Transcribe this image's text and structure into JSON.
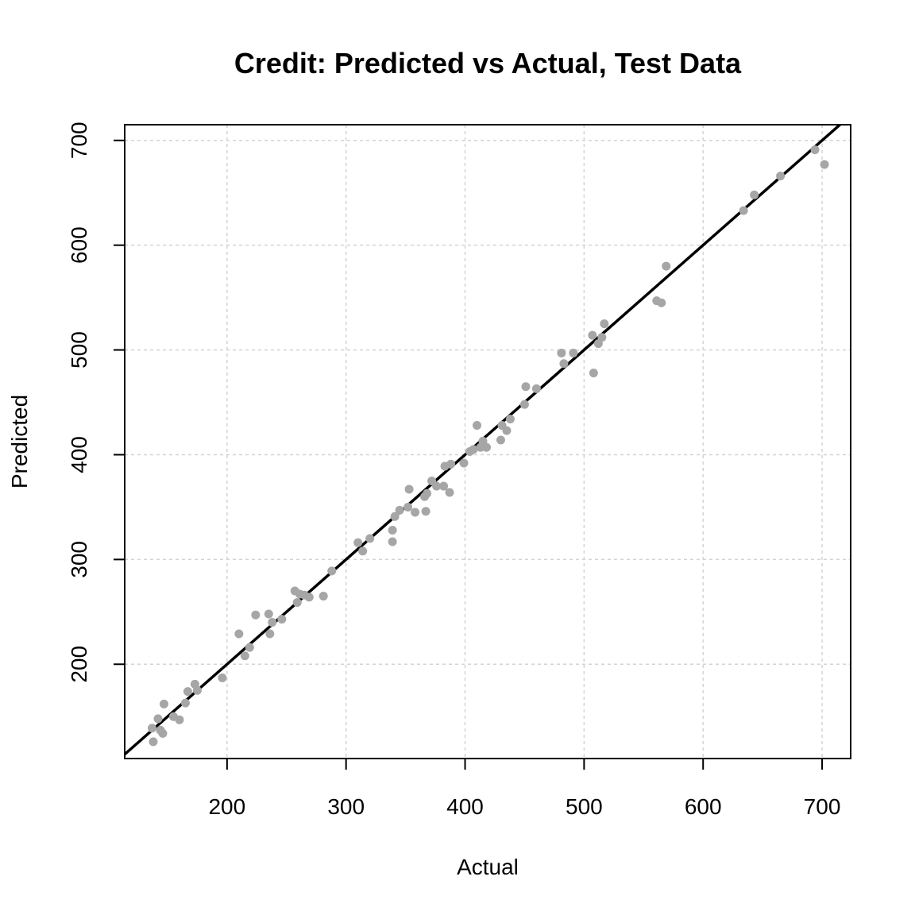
{
  "chart_data": {
    "type": "scatter",
    "title": "Credit: Predicted vs Actual, Test Data",
    "xlabel": "Actual",
    "ylabel": "Predicted",
    "xlim": [
      114,
      724
    ],
    "ylim": [
      110,
      715
    ],
    "xticks": [
      200,
      300,
      400,
      500,
      600,
      700
    ],
    "yticks": [
      200,
      300,
      400,
      500,
      600,
      700
    ],
    "grid": true,
    "point_color": "#a6a6a6",
    "line_color": "#000000",
    "reference_line": {
      "intercept": 0,
      "slope": 1
    },
    "series": [
      {
        "points": [
          [
            137,
            139
          ],
          [
            138,
            126
          ],
          [
            142,
            148
          ],
          [
            144,
            137
          ],
          [
            146,
            134
          ],
          [
            147,
            162
          ],
          [
            155,
            150
          ],
          [
            160,
            147
          ],
          [
            165,
            163
          ],
          [
            167,
            174
          ],
          [
            173,
            181
          ],
          [
            175,
            175
          ],
          [
            196,
            187
          ],
          [
            210,
            229
          ],
          [
            215,
            208
          ],
          [
            219,
            216
          ],
          [
            224,
            247
          ],
          [
            235,
            248
          ],
          [
            236,
            229
          ],
          [
            238,
            240
          ],
          [
            246,
            243
          ],
          [
            257,
            270
          ],
          [
            259,
            259
          ],
          [
            261,
            267
          ],
          [
            265,
            266
          ],
          [
            269,
            264
          ],
          [
            281,
            265
          ],
          [
            288,
            289
          ],
          [
            310,
            316
          ],
          [
            314,
            308
          ],
          [
            320,
            320
          ],
          [
            339,
            328
          ],
          [
            339,
            317
          ],
          [
            341,
            341
          ],
          [
            345,
            347
          ],
          [
            352,
            350
          ],
          [
            353,
            367
          ],
          [
            358,
            345
          ],
          [
            366,
            360
          ],
          [
            367,
            346
          ],
          [
            368,
            363
          ],
          [
            372,
            375
          ],
          [
            376,
            370
          ],
          [
            382,
            370
          ],
          [
            383,
            389
          ],
          [
            387,
            364
          ],
          [
            388,
            391
          ],
          [
            399,
            392
          ],
          [
            404,
            403
          ],
          [
            407,
            405
          ],
          [
            410,
            428
          ],
          [
            413,
            407
          ],
          [
            415,
            413
          ],
          [
            418,
            407
          ],
          [
            430,
            414
          ],
          [
            431,
            428
          ],
          [
            435,
            423
          ],
          [
            438,
            434
          ],
          [
            450,
            448
          ],
          [
            451,
            465
          ],
          [
            460,
            463
          ],
          [
            481,
            497
          ],
          [
            483,
            487
          ],
          [
            491,
            497
          ],
          [
            507,
            514
          ],
          [
            508,
            478
          ],
          [
            512,
            506
          ],
          [
            515,
            512
          ],
          [
            517,
            525
          ],
          [
            561,
            547
          ],
          [
            565,
            545
          ],
          [
            569,
            580
          ],
          [
            634,
            633
          ],
          [
            643,
            648
          ],
          [
            665,
            666
          ],
          [
            694,
            691
          ],
          [
            702,
            677
          ]
        ]
      }
    ]
  }
}
